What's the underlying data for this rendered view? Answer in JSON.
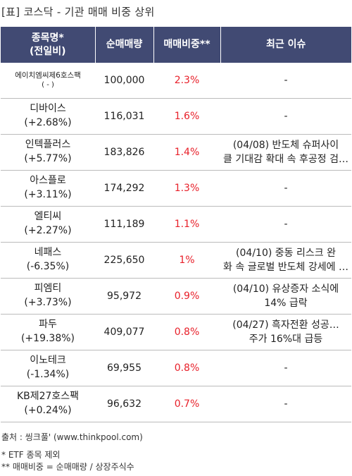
{
  "title": "[표] 코스닥 - 기관 매매 비중 상위",
  "table": {
    "headers": [
      {
        "line1": "종목명*",
        "line2": "(전일비)"
      },
      {
        "line1": "순매매량",
        "line2": ""
      },
      {
        "line1": "매매비중**",
        "line2": ""
      },
      {
        "line1": "최근 이슈",
        "line2": ""
      }
    ],
    "rows": [
      {
        "name": "에이치엠씨제6호스팩",
        "change": "( - )",
        "volume": "100,000",
        "ratio": "2.3%",
        "issue1": "-",
        "issue2": "",
        "small": true
      },
      {
        "name": "디바이스",
        "change": "(+2.68%)",
        "volume": "116,031",
        "ratio": "1.6%",
        "issue1": "-",
        "issue2": ""
      },
      {
        "name": "인텍플러스",
        "change": "(+5.77%)",
        "volume": "183,826",
        "ratio": "1.4%",
        "issue1": "(04/08) 반도체 슈퍼사이",
        "issue2": "클 기대감 확대 속 후공정 검…"
      },
      {
        "name": "아스플로",
        "change": "(+3.11%)",
        "volume": "174,292",
        "ratio": "1.3%",
        "issue1": "-",
        "issue2": ""
      },
      {
        "name": "엘티씨",
        "change": "(+2.27%)",
        "volume": "111,189",
        "ratio": "1.1%",
        "issue1": "-",
        "issue2": ""
      },
      {
        "name": "네패스",
        "change": "(-6.35%)",
        "volume": "225,650",
        "ratio": "1%",
        "issue1": "(04/10) 중동 리스크 완",
        "issue2": "화 속 글로벌 반도체 강세에 …"
      },
      {
        "name": "피엠티",
        "change": "(+3.73%)",
        "volume": "95,972",
        "ratio": "0.9%",
        "issue1": "(04/10) 유상증자 소식에",
        "issue2": " 14% 급락"
      },
      {
        "name": "파두",
        "change": "(+19.38%)",
        "volume": "409,077",
        "ratio": "0.8%",
        "issue1": "(04/27) 흑자전환 성공…",
        "issue2": "주가 16%대 급등"
      },
      {
        "name": "이노테크",
        "change": "(-1.34%)",
        "volume": "69,955",
        "ratio": "0.8%",
        "issue1": "-",
        "issue2": ""
      },
      {
        "name": "KB제27호스팩",
        "change": "(+0.24%)",
        "volume": "96,632",
        "ratio": "0.7%",
        "issue1": "-",
        "issue2": ""
      }
    ]
  },
  "footer": {
    "source": "출처 : 씽크풀' (www.thinkpool.com)",
    "note1": "* ETF 종목 제외",
    "note2": "** 매매비중 = 순매매량 / 상장주식수"
  },
  "colors": {
    "header_bg": "#414a73",
    "ratio_text": "#e8202a"
  }
}
